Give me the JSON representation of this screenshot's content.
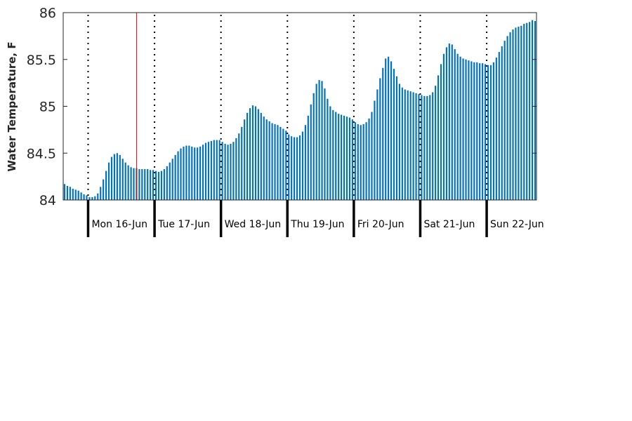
{
  "chart_data": {
    "type": "bar",
    "title": "",
    "xlabel": "",
    "ylabel": "Water Temperature, F",
    "ylim": [
      84,
      86
    ],
    "yticks": [
      "84",
      "84.5",
      "85",
      "85.5",
      "86"
    ],
    "bar_color": "#0072BD",
    "day_labels": [
      "Mon 16-Jun",
      "Tue 17-Jun",
      "Wed 18-Jun",
      "Thu 19-Jun",
      "Fri 20-Jun",
      "Sat 21-Jun",
      "Sun 22-Jun"
    ],
    "samples_per_day": 24,
    "first_day_offset": 9,
    "values": [
      84.17,
      84.15,
      84.14,
      84.12,
      84.11,
      84.1,
      84.08,
      84.06,
      84.05,
      84.03,
      84.03,
      84.04,
      84.07,
      84.14,
      84.22,
      84.31,
      84.4,
      84.46,
      84.49,
      84.5,
      84.48,
      84.44,
      84.4,
      84.37,
      84.35,
      84.34,
      84.34,
      84.33,
      84.33,
      84.33,
      84.33,
      84.32,
      84.32,
      84.31,
      84.3,
      84.31,
      84.33,
      84.36,
      84.4,
      84.44,
      84.48,
      84.52,
      84.55,
      84.57,
      84.58,
      84.58,
      84.57,
      84.56,
      84.56,
      84.57,
      84.59,
      84.61,
      84.62,
      84.63,
      84.64,
      84.64,
      84.64,
      84.62,
      84.6,
      84.59,
      84.6,
      84.62,
      84.66,
      84.71,
      84.78,
      84.86,
      84.93,
      84.98,
      85.01,
      85.0,
      84.97,
      84.93,
      84.89,
      84.86,
      84.84,
      84.82,
      84.81,
      84.8,
      84.78,
      84.76,
      84.74,
      84.7,
      84.68,
      84.67,
      84.67,
      84.69,
      84.73,
      84.8,
      84.9,
      85.02,
      85.14,
      85.24,
      85.28,
      85.27,
      85.19,
      85.08,
      85.0,
      84.96,
      84.94,
      84.92,
      84.91,
      84.9,
      84.89,
      84.88,
      84.86,
      84.83,
      84.81,
      84.8,
      84.81,
      84.83,
      84.87,
      84.94,
      85.06,
      85.18,
      85.3,
      85.41,
      85.51,
      85.53,
      85.48,
      85.4,
      85.32,
      85.24,
      85.2,
      85.18,
      85.17,
      85.16,
      85.15,
      85.14,
      85.13,
      85.12,
      85.11,
      85.11,
      85.12,
      85.15,
      85.22,
      85.33,
      85.45,
      85.56,
      85.63,
      85.67,
      85.66,
      85.61,
      85.56,
      85.53,
      85.51,
      85.5,
      85.49,
      85.48,
      85.47,
      85.47,
      85.46,
      85.46,
      85.45,
      85.44,
      85.44,
      85.47,
      85.52,
      85.58,
      85.64,
      85.7,
      85.75,
      85.79,
      85.82,
      85.84,
      85.85,
      85.86,
      85.88,
      85.89,
      85.9,
      85.92,
      85.91
    ],
    "red_marker_index": 26,
    "grid": false,
    "legend": "none"
  }
}
